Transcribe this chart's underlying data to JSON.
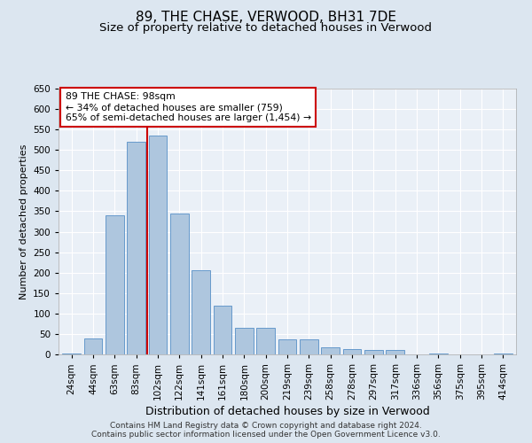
{
  "title": "89, THE CHASE, VERWOOD, BH31 7DE",
  "subtitle": "Size of property relative to detached houses in Verwood",
  "xlabel": "Distribution of detached houses by size in Verwood",
  "ylabel": "Number of detached properties",
  "categories": [
    "24sqm",
    "44sqm",
    "63sqm",
    "83sqm",
    "102sqm",
    "122sqm",
    "141sqm",
    "161sqm",
    "180sqm",
    "200sqm",
    "219sqm",
    "239sqm",
    "258sqm",
    "278sqm",
    "297sqm",
    "317sqm",
    "336sqm",
    "356sqm",
    "375sqm",
    "395sqm",
    "414sqm"
  ],
  "values": [
    2,
    40,
    340,
    520,
    535,
    345,
    205,
    120,
    65,
    65,
    37,
    37,
    17,
    12,
    10,
    10,
    0,
    3,
    0,
    0,
    3
  ],
  "bar_color": "#aec6de",
  "bar_edge_color": "#6699cc",
  "highlight_line_color": "#cc0000",
  "highlight_bar_index": 4,
  "annotation_text": "89 THE CHASE: 98sqm\n← 34% of detached houses are smaller (759)\n65% of semi-detached houses are larger (1,454) →",
  "annotation_box_color": "#cc0000",
  "ylim": [
    0,
    650
  ],
  "yticks": [
    0,
    50,
    100,
    150,
    200,
    250,
    300,
    350,
    400,
    450,
    500,
    550,
    600,
    650
  ],
  "bg_color": "#dce6f0",
  "plot_bg_color": "#eaf0f7",
  "footer_line1": "Contains HM Land Registry data © Crown copyright and database right 2024.",
  "footer_line2": "Contains public sector information licensed under the Open Government Licence v3.0.",
  "title_fontsize": 11,
  "subtitle_fontsize": 9.5,
  "annotation_fontsize": 7.8,
  "xlabel_fontsize": 9,
  "ylabel_fontsize": 8,
  "tick_fontsize": 7.5,
  "footer_fontsize": 6.5
}
